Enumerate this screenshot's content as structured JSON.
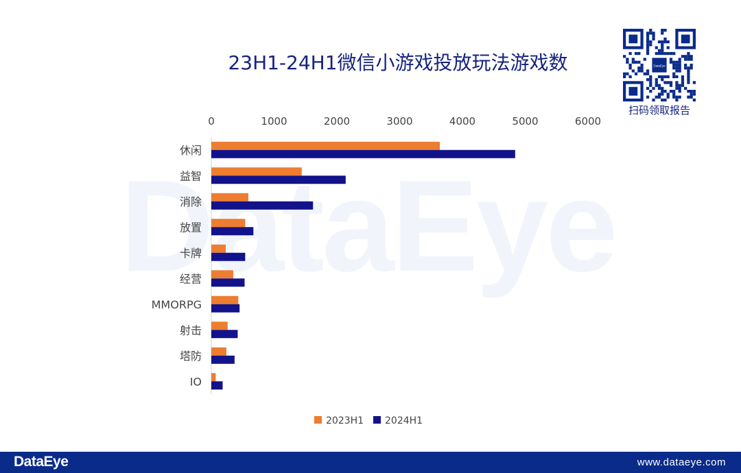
{
  "header": {
    "title": "23H1-24H1微信小游戏投放玩法游戏数",
    "qr_caption": "扫码领取报告",
    "qr_logo_text": "DataEye"
  },
  "watermark": "DataEye",
  "footer": {
    "brand": "DataEye",
    "url": "www.dataeye.com"
  },
  "colors": {
    "series_2023": "#ed7d31",
    "series_2024": "#12128a",
    "title": "#16237d",
    "footer_bg": "#0a2b8a"
  },
  "chart_data": {
    "type": "bar",
    "orientation": "horizontal",
    "categories": [
      "休闲",
      "益智",
      "消除",
      "放置",
      "卡牌",
      "经营",
      "MMORPG",
      "射击",
      "塔防",
      "IO"
    ],
    "series": [
      {
        "name": "2023H1",
        "values": [
          3640,
          1440,
          590,
          540,
          230,
          350,
          430,
          260,
          240,
          70
        ]
      },
      {
        "name": "2024H1",
        "values": [
          4840,
          2140,
          1620,
          670,
          540,
          530,
          450,
          420,
          370,
          180
        ]
      }
    ],
    "xlim": [
      0,
      6000
    ],
    "xticks": [
      "0",
      "1000",
      "2000",
      "3000",
      "4000",
      "5000",
      "6000"
    ],
    "axis_position": "top",
    "legend_position": "bottom",
    "grid": false
  }
}
